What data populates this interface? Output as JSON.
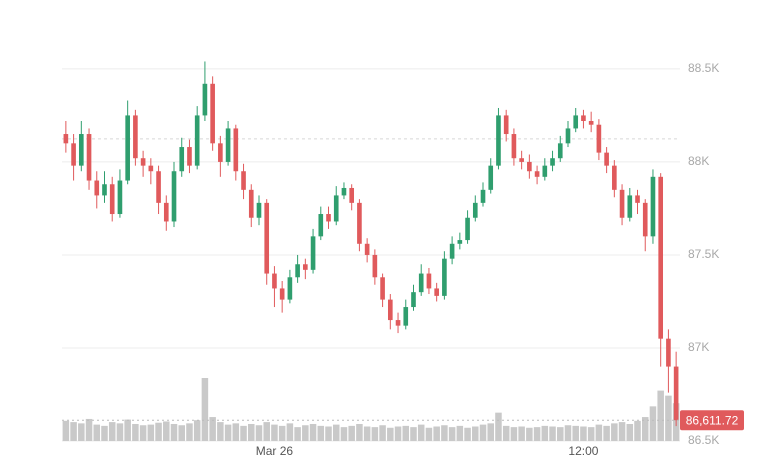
{
  "chart_data": {
    "type": "candlestick",
    "categories": [
      null,
      null,
      null,
      null,
      null,
      null,
      null,
      null,
      null,
      null,
      null,
      null,
      null,
      null,
      null,
      null,
      null,
      null,
      null,
      null,
      null,
      null,
      null,
      null,
      null,
      null,
      null,
      "Mar 26",
      null,
      null,
      null,
      null,
      null,
      null,
      null,
      null,
      null,
      null,
      null,
      null,
      null,
      null,
      null,
      null,
      null,
      null,
      null,
      null,
      null,
      null,
      null,
      null,
      null,
      null,
      null,
      null,
      null,
      null,
      null,
      null,
      null,
      null,
      null,
      null,
      null,
      null,
      null,
      "12:00",
      null,
      null,
      null,
      null,
      null,
      null,
      null,
      null,
      null,
      null,
      null,
      null
    ],
    "open": [
      88150,
      88100,
      87980,
      88150,
      87900,
      87820,
      87880,
      87720,
      87900,
      88250,
      88020,
      87980,
      87950,
      87780,
      87680,
      87950,
      88080,
      87980,
      88250,
      88420,
      88100,
      88000,
      88180,
      87950,
      87850,
      87700,
      87780,
      87400,
      87320,
      87260,
      87380,
      87450,
      87420,
      87600,
      87720,
      87680,
      87820,
      87860,
      87780,
      87560,
      87500,
      87380,
      87260,
      87150,
      87120,
      87220,
      87300,
      87400,
      87320,
      87280,
      87480,
      87560,
      87580,
      87700,
      87780,
      87850,
      87980,
      88250,
      88150,
      88020,
      88000,
      87950,
      87920,
      87980,
      88020,
      88100,
      88180,
      88250,
      88220,
      88200,
      88050,
      87980,
      87850,
      87700,
      87820,
      87780,
      87600,
      87920,
      87050,
      86900
    ],
    "high": [
      88220,
      88150,
      88220,
      88180,
      87950,
      87950,
      87920,
      87960,
      88330,
      88280,
      88060,
      88020,
      87980,
      87820,
      88000,
      88130,
      88120,
      88300,
      88540,
      88460,
      88140,
      88220,
      88200,
      87990,
      87880,
      87820,
      87800,
      87440,
      87360,
      87420,
      87500,
      87480,
      87640,
      87760,
      87760,
      87870,
      87890,
      87880,
      87800,
      87590,
      87530,
      87400,
      87290,
      87190,
      87260,
      87340,
      87450,
      87430,
      87350,
      87520,
      87600,
      87620,
      87740,
      87820,
      87890,
      88020,
      88290,
      88280,
      88180,
      88060,
      88040,
      87980,
      88020,
      88060,
      88140,
      88220,
      88290,
      88280,
      88270,
      88230,
      88080,
      88010,
      87880,
      87860,
      87850,
      87800,
      87960,
      87940,
      87100,
      86980
    ],
    "low": [
      88050,
      87900,
      87950,
      87850,
      87750,
      87780,
      87680,
      87700,
      87880,
      87980,
      87920,
      87880,
      87720,
      87630,
      87650,
      87920,
      87940,
      87960,
      88220,
      88060,
      87920,
      87980,
      87900,
      87800,
      87650,
      87660,
      87340,
      87220,
      87190,
      87240,
      87350,
      87370,
      87400,
      87580,
      87640,
      87660,
      87800,
      87740,
      87520,
      87460,
      87340,
      87220,
      87100,
      87080,
      87100,
      87200,
      87280,
      87290,
      87250,
      87260,
      87450,
      87530,
      87560,
      87680,
      87760,
      87830,
      87960,
      88110,
      87980,
      87960,
      87910,
      87880,
      87900,
      87950,
      88000,
      88080,
      88160,
      88180,
      88160,
      88010,
      87940,
      87810,
      87660,
      87680,
      87720,
      87520,
      87560,
      86900,
      86760,
      86580
    ],
    "close": [
      88100,
      87980,
      88150,
      87900,
      87820,
      87880,
      87720,
      87900,
      88250,
      88020,
      87980,
      87950,
      87780,
      87680,
      87950,
      88080,
      87980,
      88250,
      88420,
      88100,
      88000,
      88180,
      87950,
      87850,
      87700,
      87780,
      87400,
      87320,
      87260,
      87380,
      87450,
      87420,
      87600,
      87720,
      87680,
      87820,
      87860,
      87780,
      87560,
      87500,
      87380,
      87260,
      87150,
      87120,
      87220,
      87300,
      87400,
      87320,
      87280,
      87480,
      87560,
      87580,
      87700,
      87780,
      87850,
      87980,
      88250,
      88150,
      88020,
      88000,
      87950,
      87920,
      87980,
      88020,
      88100,
      88180,
      88250,
      88220,
      88200,
      88050,
      87980,
      87850,
      87700,
      87820,
      87780,
      87600,
      87920,
      87050,
      86900,
      86611.72
    ],
    "volume": [
      32,
      30,
      28,
      35,
      26,
      24,
      30,
      28,
      34,
      27,
      25,
      26,
      29,
      31,
      27,
      25,
      28,
      33,
      100,
      38,
      30,
      26,
      28,
      24,
      27,
      25,
      30,
      26,
      24,
      28,
      22,
      25,
      27,
      24,
      23,
      26,
      22,
      24,
      27,
      23,
      22,
      25,
      21,
      23,
      24,
      22,
      26,
      21,
      23,
      25,
      22,
      24,
      21,
      23,
      26,
      28,
      45,
      24,
      22,
      23,
      21,
      22,
      24,
      23,
      22,
      25,
      24,
      23,
      22,
      26,
      24,
      28,
      30,
      27,
      32,
      38,
      55,
      80,
      72,
      60
    ],
    "volume_ylim": [
      0,
      100
    ],
    "up_color": "#2f9e6e",
    "down_color": "#e05a5c",
    "volume_color": "#c9c9c9",
    "ylim": [
      86500,
      88650
    ],
    "yticks": [
      {
        "value": 86500,
        "label": "86.5K"
      },
      {
        "value": 87000,
        "label": "87K"
      },
      {
        "value": 87500,
        "label": "87.5K"
      },
      {
        "value": 88000,
        "label": "88K"
      },
      {
        "value": 88500,
        "label": "88.5K"
      }
    ],
    "grid": true,
    "reference_line": 88124,
    "last_price": {
      "value": 86611.72,
      "label": "86,611.72"
    }
  }
}
